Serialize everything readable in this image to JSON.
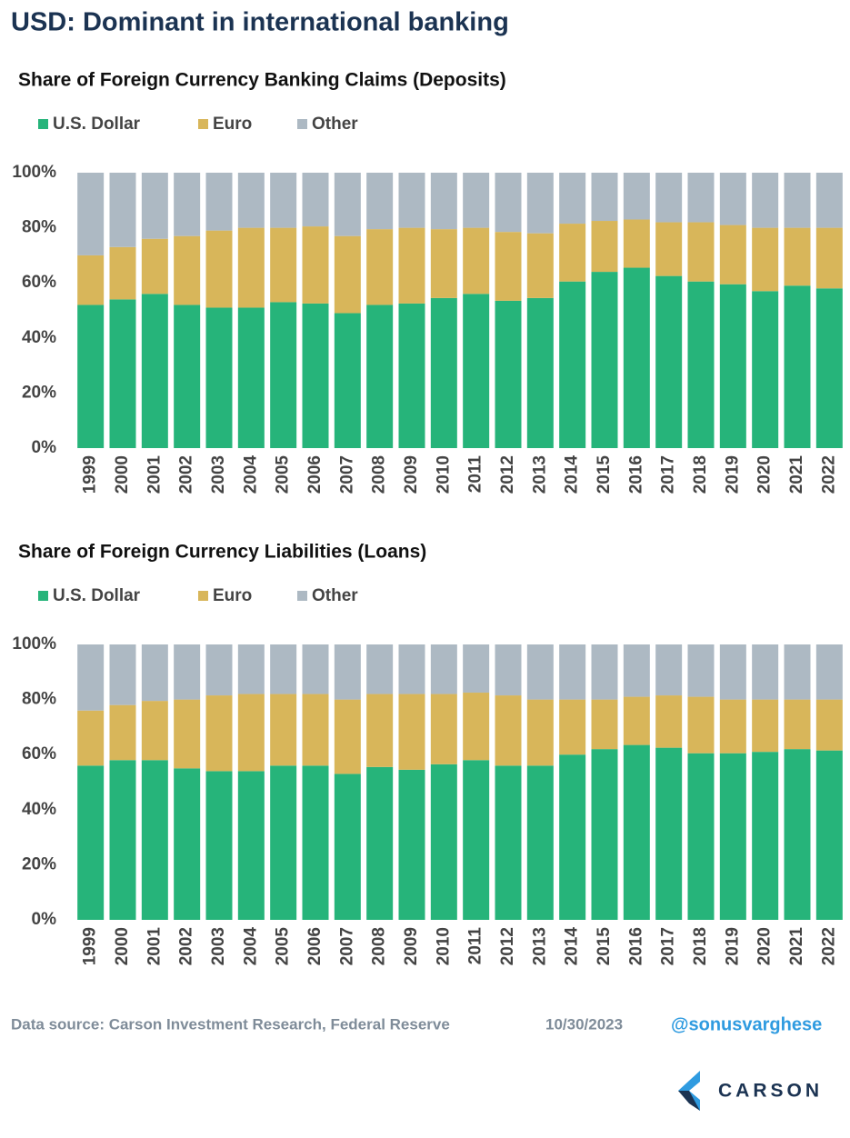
{
  "title": "USD: Dominant in international banking",
  "source": "Data source: Carson Investment Research, Federal Reserve",
  "date": "10/30/2023",
  "handle": "@sonusvarghese",
  "logo": "CARSON",
  "chart_data": [
    {
      "type": "bar",
      "stacked": true,
      "title": "Share of Foreign Currency Banking Claims (Deposits)",
      "legend": "top-left",
      "grid": false,
      "categories": [
        "1999",
        "2000",
        "2001",
        "2002",
        "2003",
        "2004",
        "2005",
        "2006",
        "2007",
        "2008",
        "2009",
        "2010",
        "2011",
        "2012",
        "2013",
        "2014",
        "2015",
        "2016",
        "2017",
        "2018",
        "2019",
        "2020",
        "2021",
        "2022"
      ],
      "series": [
        {
          "name": "U.S. Dollar",
          "color": "#26b47a",
          "values": [
            52,
            54,
            56,
            52,
            51,
            51,
            53,
            52.5,
            49,
            52,
            52.5,
            54.5,
            56,
            53.5,
            54.5,
            60.5,
            64,
            65.5,
            62.5,
            60.5,
            59.5,
            57,
            59,
            58
          ]
        },
        {
          "name": "Euro",
          "color": "#d8b65a",
          "values": [
            18,
            19,
            20,
            25,
            28,
            29,
            27,
            28,
            28,
            27.5,
            27.5,
            25,
            24,
            25,
            23.5,
            21,
            18.5,
            17.5,
            19.5,
            21.5,
            21.5,
            23,
            21,
            22
          ]
        },
        {
          "name": "Other",
          "color": "#adb9c3",
          "values": [
            30,
            27,
            24,
            23,
            21,
            20,
            20,
            19.5,
            23,
            20.5,
            20,
            20.5,
            20,
            21.5,
            22,
            18.5,
            17.5,
            17,
            18,
            18,
            19,
            20,
            20,
            20
          ]
        }
      ],
      "ylim": [
        0,
        100
      ],
      "yticks": [
        {
          "value": 0,
          "label": "0%"
        },
        {
          "value": 20,
          "label": "20%"
        },
        {
          "value": 40,
          "label": "40%"
        },
        {
          "value": 60,
          "label": "60%"
        },
        {
          "value": 80,
          "label": "80%"
        },
        {
          "value": 100,
          "label": "100%"
        }
      ]
    },
    {
      "type": "bar",
      "stacked": true,
      "title": "Share of Foreign Currency Liabilities (Loans)",
      "legend": "top-left",
      "grid": false,
      "categories": [
        "1999",
        "2000",
        "2001",
        "2002",
        "2003",
        "2004",
        "2005",
        "2006",
        "2007",
        "2008",
        "2009",
        "2010",
        "2011",
        "2012",
        "2013",
        "2014",
        "2015",
        "2016",
        "2017",
        "2018",
        "2019",
        "2020",
        "2021",
        "2022"
      ],
      "series": [
        {
          "name": "U.S. Dollar",
          "color": "#26b47a",
          "values": [
            56,
            58,
            58,
            55,
            54,
            54,
            56,
            56,
            53,
            55.5,
            54.5,
            56.5,
            58,
            56,
            56,
            60,
            62,
            63.5,
            62.5,
            60.5,
            60.5,
            61,
            62,
            61.5
          ]
        },
        {
          "name": "Euro",
          "color": "#d8b65a",
          "values": [
            20,
            20,
            21.5,
            25,
            27.5,
            28,
            26,
            26,
            27,
            26.5,
            27.5,
            25.5,
            24.5,
            25.5,
            24,
            20,
            18,
            17.5,
            19,
            20.5,
            19.5,
            19,
            18,
            18.5
          ]
        },
        {
          "name": "Other",
          "color": "#adb9c3",
          "values": [
            24,
            22,
            20.5,
            20,
            18.5,
            18,
            18,
            18,
            20,
            18,
            18,
            18,
            17.5,
            18.5,
            20,
            20,
            20,
            19,
            18.5,
            19,
            20,
            20,
            20,
            20
          ]
        }
      ],
      "ylim": [
        0,
        100
      ],
      "yticks": [
        {
          "value": 0,
          "label": "0%"
        },
        {
          "value": 20,
          "label": "20%"
        },
        {
          "value": 40,
          "label": "40%"
        },
        {
          "value": 60,
          "label": "60%"
        },
        {
          "value": 80,
          "label": "80%"
        },
        {
          "value": 100,
          "label": "100%"
        }
      ]
    }
  ]
}
